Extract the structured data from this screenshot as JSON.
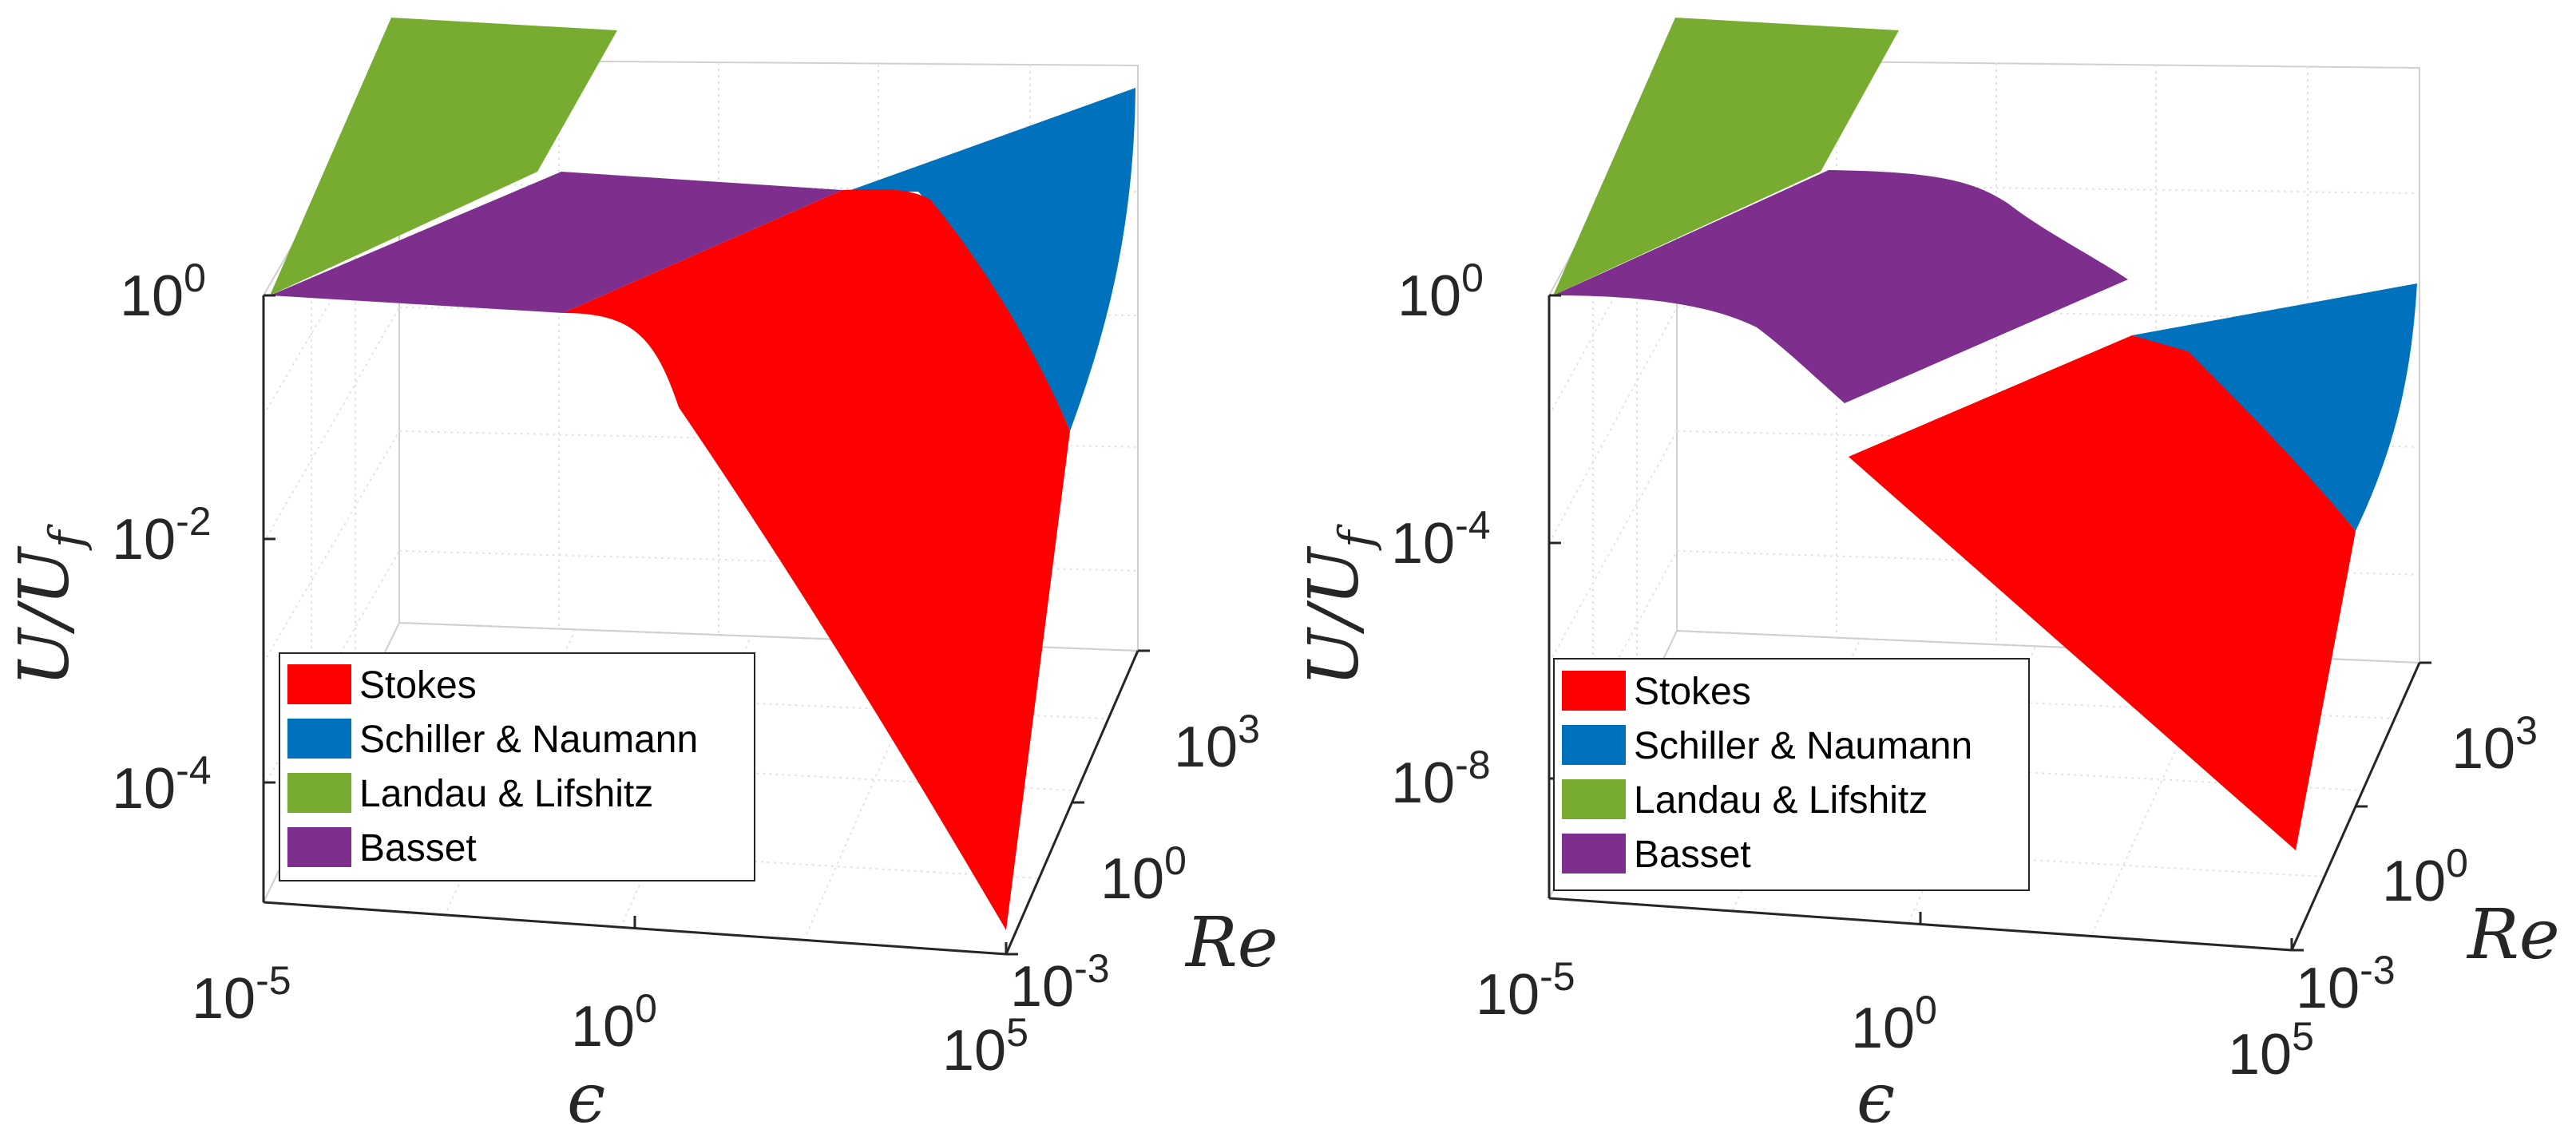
{
  "chart_data": [
    {
      "type": "surface",
      "panel": "left",
      "xlabel": "ϵ",
      "ylabel": "Re",
      "zlabel_main": "U/U",
      "zlabel_sub": "f",
      "x_ticks": [
        {
          "base": "10",
          "exp": "-5"
        },
        {
          "base": "10",
          "exp": "0"
        },
        {
          "base": "10",
          "exp": "5"
        }
      ],
      "y_ticks": [
        {
          "base": "10",
          "exp": "-3"
        },
        {
          "base": "10",
          "exp": "0"
        },
        {
          "base": "10",
          "exp": "3"
        }
      ],
      "z_ticks": [
        {
          "base": "10",
          "exp": "0"
        },
        {
          "base": "10",
          "exp": "-2"
        },
        {
          "base": "10",
          "exp": "-4"
        }
      ],
      "x_log10_range": [
        -5,
        5
      ],
      "y_log10_range": [
        -3,
        3
      ],
      "z_log10_range": [
        -5.2,
        1.2
      ],
      "legend": {
        "placement": "lower-left",
        "items": [
          {
            "label": "Stokes",
            "color": "#ff0000"
          },
          {
            "label": "Schiller & Naumann",
            "color": "#0072bd"
          },
          {
            "label": "Landau & Lifshitz",
            "color": "#77ac30"
          },
          {
            "label": "Basset",
            "color": "#7e2f8e"
          }
        ]
      },
      "grid": true
    },
    {
      "type": "surface",
      "panel": "right",
      "xlabel": "ϵ",
      "ylabel": "Re",
      "zlabel_main": "U/U",
      "zlabel_sub": "f",
      "x_ticks": [
        {
          "base": "10",
          "exp": "-5"
        },
        {
          "base": "10",
          "exp": "0"
        },
        {
          "base": "10",
          "exp": "5"
        }
      ],
      "y_ticks": [
        {
          "base": "10",
          "exp": "-3"
        },
        {
          "base": "10",
          "exp": "0"
        },
        {
          "base": "10",
          "exp": "3"
        }
      ],
      "z_ticks": [
        {
          "base": "10",
          "exp": "0"
        },
        {
          "base": "10",
          "exp": "-4"
        },
        {
          "base": "10",
          "exp": "-8"
        }
      ],
      "x_log10_range": [
        -5,
        5
      ],
      "y_log10_range": [
        -3,
        3
      ],
      "z_log10_range": [
        -10,
        2
      ],
      "legend": {
        "placement": "lower-left",
        "items": [
          {
            "label": "Stokes",
            "color": "#ff0000"
          },
          {
            "label": "Schiller & Naumann",
            "color": "#0072bd"
          },
          {
            "label": "Landau & Lifshitz",
            "color": "#77ac30"
          },
          {
            "label": "Basset",
            "color": "#7e2f8e"
          }
        ]
      },
      "grid": true
    }
  ]
}
